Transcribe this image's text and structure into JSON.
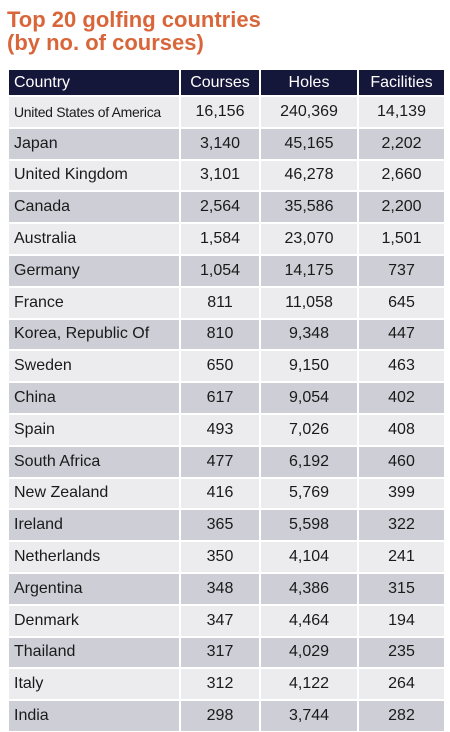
{
  "title": {
    "line1": "Top 20 golfing countries",
    "line2": "(by no. of courses)"
  },
  "colors": {
    "title": "#d9663a",
    "header_bg": "#15173a",
    "row_light": "#ececef",
    "row_dark": "#cdced6"
  },
  "chart_data": {
    "type": "table",
    "title": "Top 20 golfing countries (by no. of courses)",
    "columns": [
      "Country",
      "Courses",
      "Holes",
      "Facilities"
    ],
    "rows": [
      [
        "United States of America",
        "16,156",
        "240,369",
        "14,139"
      ],
      [
        "Japan",
        "3,140",
        "45,165",
        "2,202"
      ],
      [
        "United Kingdom",
        "3,101",
        "46,278",
        "2,660"
      ],
      [
        "Canada",
        "2,564",
        "35,586",
        "2,200"
      ],
      [
        "Australia",
        "1,584",
        "23,070",
        "1,501"
      ],
      [
        "Germany",
        "1,054",
        "14,175",
        "737"
      ],
      [
        "France",
        "811",
        "11,058",
        "645"
      ],
      [
        "Korea, Republic Of",
        "810",
        "9,348",
        "447"
      ],
      [
        "Sweden",
        "650",
        "9,150",
        "463"
      ],
      [
        "China",
        "617",
        "9,054",
        "402"
      ],
      [
        "Spain",
        "493",
        "7,026",
        "408"
      ],
      [
        "South Africa",
        "477",
        "6,192",
        "460"
      ],
      [
        "New Zealand",
        "416",
        "5,769",
        "399"
      ],
      [
        "Ireland",
        "365",
        "5,598",
        "322"
      ],
      [
        "Netherlands",
        "350",
        "4,104",
        "241"
      ],
      [
        "Argentina",
        "348",
        "4,386",
        "315"
      ],
      [
        "Denmark",
        "347",
        "4,464",
        "194"
      ],
      [
        "Thailand",
        "317",
        "4,029",
        "235"
      ],
      [
        "Italy",
        "312",
        "4,122",
        "264"
      ],
      [
        "India",
        "298",
        "3,744",
        "282"
      ]
    ]
  }
}
